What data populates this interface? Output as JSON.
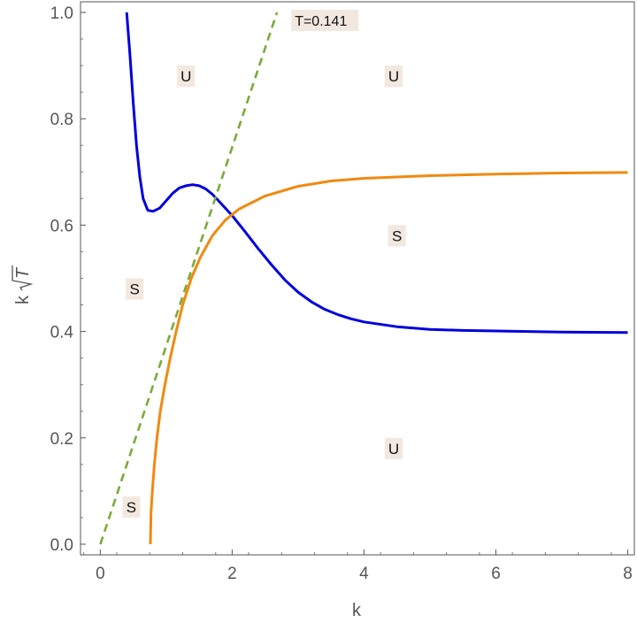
{
  "chart_data": {
    "type": "line",
    "title": "",
    "xlabel": "k",
    "ylabel": "k",
    "ylabel_radical": "T",
    "xlim": [
      -0.3,
      8.1
    ],
    "ylim": [
      -0.02,
      1.02
    ],
    "x_ticks": [
      {
        "value": 0,
        "label": "0"
      },
      {
        "value": 2,
        "label": "2"
      },
      {
        "value": 4,
        "label": "4"
      },
      {
        "value": 6,
        "label": "6"
      },
      {
        "value": 8,
        "label": "8"
      }
    ],
    "y_ticks": [
      {
        "value": 0.0,
        "label": "0.0"
      },
      {
        "value": 0.2,
        "label": "0.2"
      },
      {
        "value": 0.4,
        "label": "0.4"
      },
      {
        "value": 0.6,
        "label": "0.6"
      },
      {
        "value": 0.8,
        "label": "0.8"
      },
      {
        "value": 1.0,
        "label": "1.0"
      }
    ],
    "grid": false,
    "series": [
      {
        "color": "#0000dd",
        "style": "solid",
        "points": [
          [
            0.4,
            1.0
          ],
          [
            0.45,
            0.92
          ],
          [
            0.5,
            0.83
          ],
          [
            0.55,
            0.75
          ],
          [
            0.6,
            0.69
          ],
          [
            0.65,
            0.65
          ],
          [
            0.72,
            0.628
          ],
          [
            0.8,
            0.626
          ],
          [
            0.9,
            0.632
          ],
          [
            1.0,
            0.646
          ],
          [
            1.1,
            0.66
          ],
          [
            1.2,
            0.67
          ],
          [
            1.3,
            0.674
          ],
          [
            1.4,
            0.676
          ],
          [
            1.5,
            0.674
          ],
          [
            1.6,
            0.668
          ],
          [
            1.7,
            0.658
          ],
          [
            1.8,
            0.645
          ],
          [
            2.0,
            0.618
          ],
          [
            2.2,
            0.587
          ],
          [
            2.4,
            0.555
          ],
          [
            2.6,
            0.525
          ],
          [
            2.8,
            0.497
          ],
          [
            3.0,
            0.474
          ],
          [
            3.2,
            0.456
          ],
          [
            3.4,
            0.442
          ],
          [
            3.6,
            0.432
          ],
          [
            3.8,
            0.424
          ],
          [
            4.0,
            0.418
          ],
          [
            4.5,
            0.409
          ],
          [
            5.0,
            0.404
          ],
          [
            5.5,
            0.402
          ],
          [
            6.0,
            0.401
          ],
          [
            7.0,
            0.399
          ],
          [
            8.0,
            0.398
          ]
        ]
      },
      {
        "color": "#f08a10",
        "style": "solid",
        "points": [
          [
            0.76,
            0.0
          ],
          [
            0.77,
            0.06
          ],
          [
            0.79,
            0.1
          ],
          [
            0.82,
            0.15
          ],
          [
            0.86,
            0.2
          ],
          [
            0.91,
            0.25
          ],
          [
            0.98,
            0.3
          ],
          [
            1.06,
            0.35
          ],
          [
            1.15,
            0.4
          ],
          [
            1.25,
            0.45
          ],
          [
            1.38,
            0.5
          ],
          [
            1.52,
            0.54
          ],
          [
            1.7,
            0.58
          ],
          [
            1.9,
            0.61
          ],
          [
            2.1,
            0.63
          ],
          [
            2.5,
            0.655
          ],
          [
            3.0,
            0.673
          ],
          [
            3.5,
            0.683
          ],
          [
            4.0,
            0.688
          ],
          [
            5.0,
            0.693
          ],
          [
            6.0,
            0.696
          ],
          [
            7.0,
            0.698
          ],
          [
            8.0,
            0.699
          ]
        ]
      },
      {
        "color": "#7aab3a",
        "style": "dashed",
        "points": [
          [
            0.0,
            0.0
          ],
          [
            2.68,
            1.0
          ]
        ]
      }
    ],
    "annotations": [
      {
        "text": "U",
        "x": 1.3,
        "y": 0.88
      },
      {
        "text": "U",
        "x": 4.45,
        "y": 0.88
      },
      {
        "text": "S",
        "x": 4.5,
        "y": 0.58
      },
      {
        "text": "S",
        "x": 0.52,
        "y": 0.48
      },
      {
        "text": "U",
        "x": 4.45,
        "y": 0.18
      },
      {
        "text": "S",
        "x": 0.47,
        "y": 0.07
      },
      {
        "text": "T=0.141",
        "x": 2.95,
        "y": 0.985
      }
    ]
  }
}
